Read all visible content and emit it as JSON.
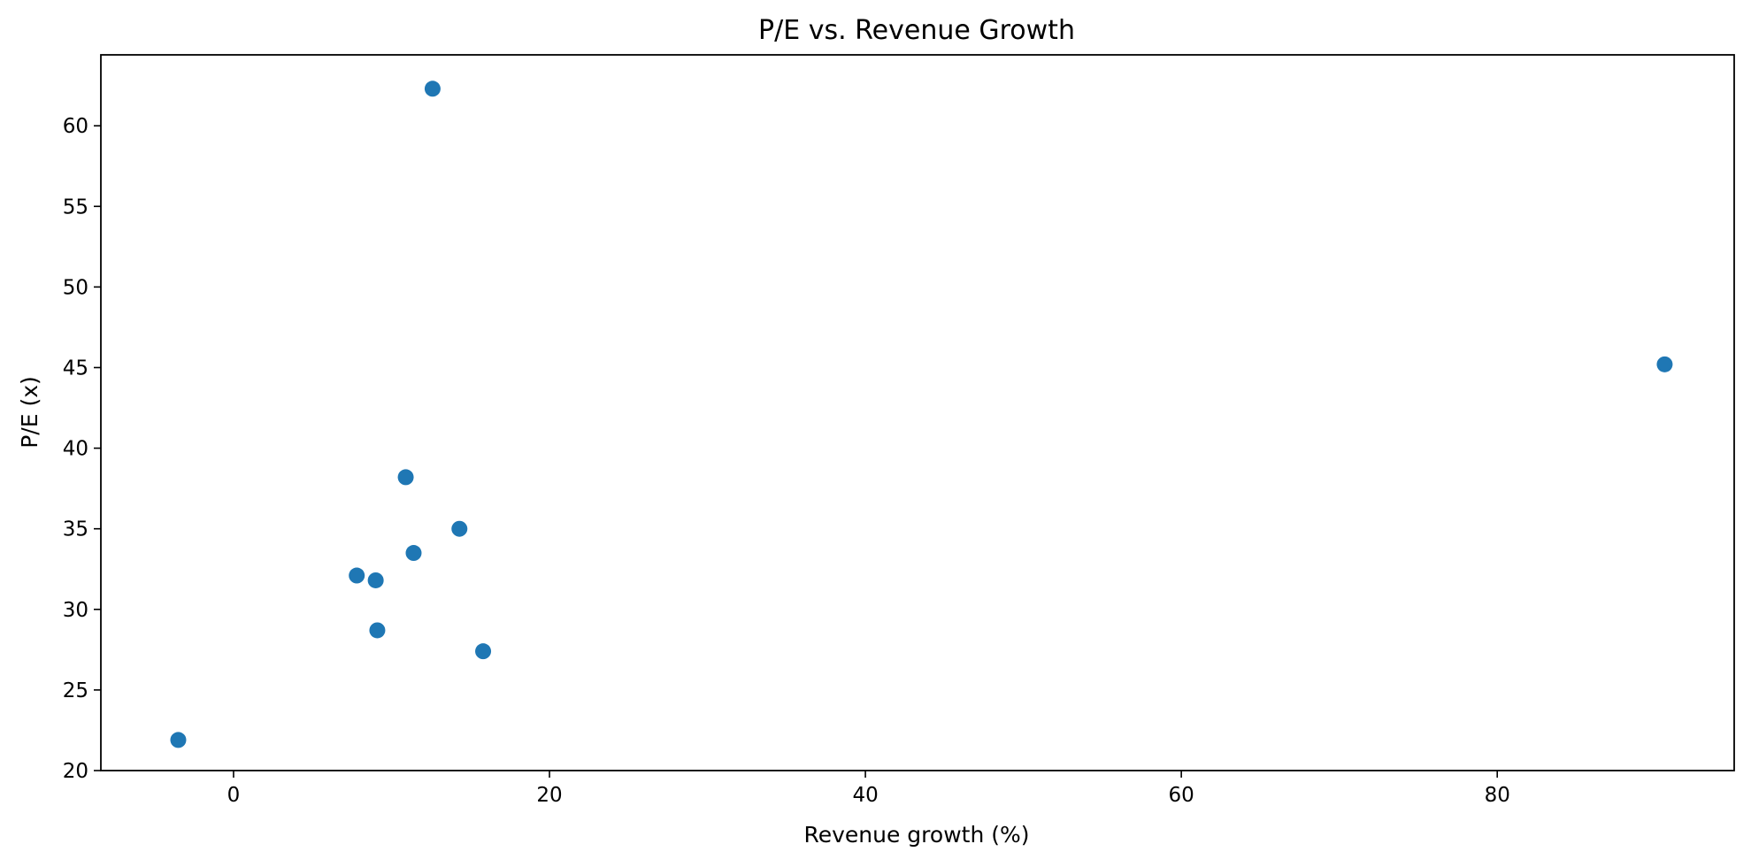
{
  "chart_data": {
    "type": "scatter",
    "title": "P/E vs. Revenue Growth",
    "xlabel": "Revenue growth (%)",
    "ylabel": "P/E (x)",
    "xlim": [
      -8.4,
      95.0
    ],
    "ylim": [
      20,
      64.4
    ],
    "xticks": [
      0,
      20,
      40,
      60,
      80
    ],
    "yticks": [
      20,
      25,
      30,
      35,
      40,
      45,
      50,
      55,
      60
    ],
    "grid": false,
    "marker_color": "#1f77b4",
    "points": [
      {
        "x": -3.5,
        "y": 21.9
      },
      {
        "x": 7.8,
        "y": 32.1
      },
      {
        "x": 9.0,
        "y": 31.8
      },
      {
        "x": 9.1,
        "y": 28.7
      },
      {
        "x": 10.9,
        "y": 38.2
      },
      {
        "x": 11.4,
        "y": 33.5
      },
      {
        "x": 12.6,
        "y": 62.3
      },
      {
        "x": 14.3,
        "y": 35.0
      },
      {
        "x": 15.8,
        "y": 27.4
      },
      {
        "x": 90.6,
        "y": 45.2
      }
    ]
  }
}
